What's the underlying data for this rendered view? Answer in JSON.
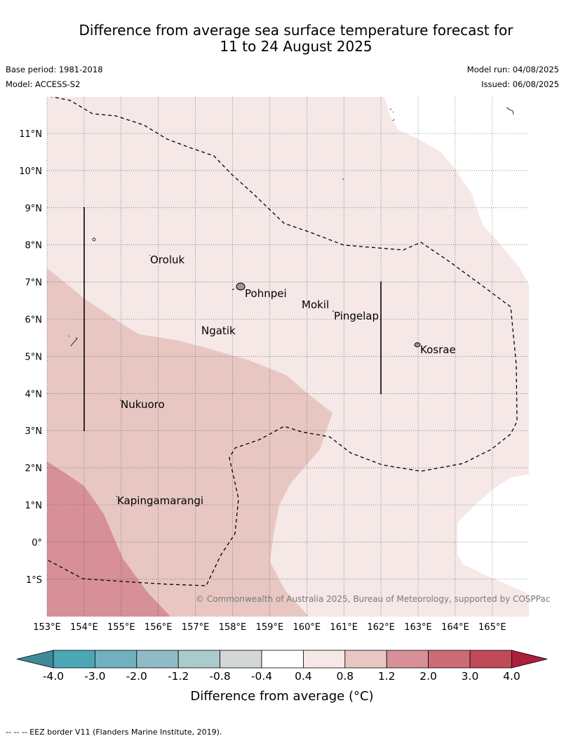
{
  "header": {
    "title_line1": "Difference from average sea surface temperature forecast for",
    "title_line2": "11 to 24 August 2025",
    "base_period": "Base period: 1981-2018",
    "model": "Model: ACCESS-S2",
    "model_run": "Model run: 04/08/2025",
    "issued": "Issued: 06/08/2025"
  },
  "map": {
    "longitude_labels": [
      "153°E",
      "154°E",
      "155°E",
      "156°E",
      "157°E",
      "158°E",
      "159°E",
      "160°E",
      "161°E",
      "162°E",
      "163°E",
      "164°E",
      "165°E"
    ],
    "latitude_labels": [
      "11°N",
      "10°N",
      "9°N",
      "8°N",
      "7°N",
      "6°N",
      "5°N",
      "4°N",
      "3°N",
      "2°N",
      "1°N",
      "0°",
      "1°S"
    ],
    "places": [
      "Oroluk",
      "Pohnpei",
      "Mokil",
      "Pingelap",
      "Ngatik",
      "Kosrae",
      "Nukuoro",
      "Kapingamarangi"
    ],
    "copyright": "© Commonwealth of Australia 2025, Bureau of Meteorology, supported by COSPPac",
    "colors": {
      "band_0p4_0p8": "#f5e8e7",
      "band_0p8_1p2": "#e8c7c3",
      "band_1p2_2p0": "#d79097",
      "eez_line": "#000000"
    }
  },
  "colorbar": {
    "tick_labels": [
      "-4.0",
      "-3.0",
      "-2.0",
      "-1.2",
      "-0.8",
      "-0.4",
      "0.4",
      "0.8",
      "1.2",
      "2.0",
      "3.0",
      "4.0"
    ],
    "colors": [
      "#3f8a98",
      "#4ba6b5",
      "#70b1c0",
      "#8ebbc6",
      "#abcacc",
      "#d3d7d6",
      "#ffffff",
      "#f5e8e7",
      "#e8c7c3",
      "#d79097",
      "#cd6b76",
      "#c04a58",
      "#ad1f3d"
    ],
    "label": "Difference from average (°C)"
  },
  "footnote": "--  --  -- EEZ border V11 (Flanders Marine Institute, 2019)."
}
